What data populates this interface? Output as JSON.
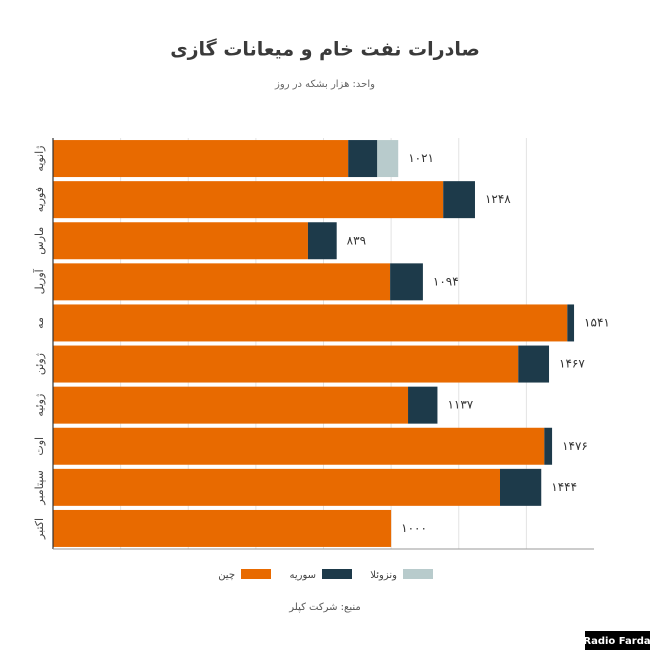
{
  "chart_data": {
    "type": "stacked-barh",
    "title": "صادرات نفت خام و میعانات گازی",
    "subtitle": "واحد: هزار بشکه در روز",
    "source": "منبع: شرکت کپلر",
    "brand": "Radio Farda",
    "categories": [
      "ژانویه",
      "فوریه",
      "مارس",
      "آوریل",
      "مه",
      "ژوئن",
      "ژوئیه",
      "اوت",
      "سپتامبر",
      "اکتبر"
    ],
    "series": [
      {
        "name": "چین",
        "color": "#e86a00",
        "values": [
          873,
          1154,
          754,
          997,
          1521,
          1376,
          1050,
          1453,
          1322,
          1000
        ]
      },
      {
        "name": "سوریه",
        "color": "#1d3a4a",
        "values": [
          86,
          94,
          85,
          97,
          20,
          91,
          87,
          23,
          122,
          null
        ]
      },
      {
        "name": "ونزوئلا",
        "color": "#b8cbcc",
        "values": [
          62,
          null,
          null,
          null,
          null,
          null,
          null,
          null,
          null,
          null
        ]
      }
    ],
    "totals": {
      "values": [
        1021,
        1248,
        839,
        1094,
        1541,
        1467,
        1137,
        1476,
        1444,
        1000
      ],
      "value_labels": [
        "۱۰۲۱",
        "۱۲۴۸",
        "۸۳۹",
        "۱۰۹۴",
        "۱۵۴۱",
        "۱۴۶۷",
        "۱۱۳۷",
        "۱۴۷۶",
        "۱۴۴۴",
        "۱۰۰۰"
      ]
    },
    "xlim": [
      0,
      1600
    ],
    "xticks": [
      200,
      400,
      600,
      800,
      1000,
      1200,
      1400
    ],
    "grid": true
  }
}
